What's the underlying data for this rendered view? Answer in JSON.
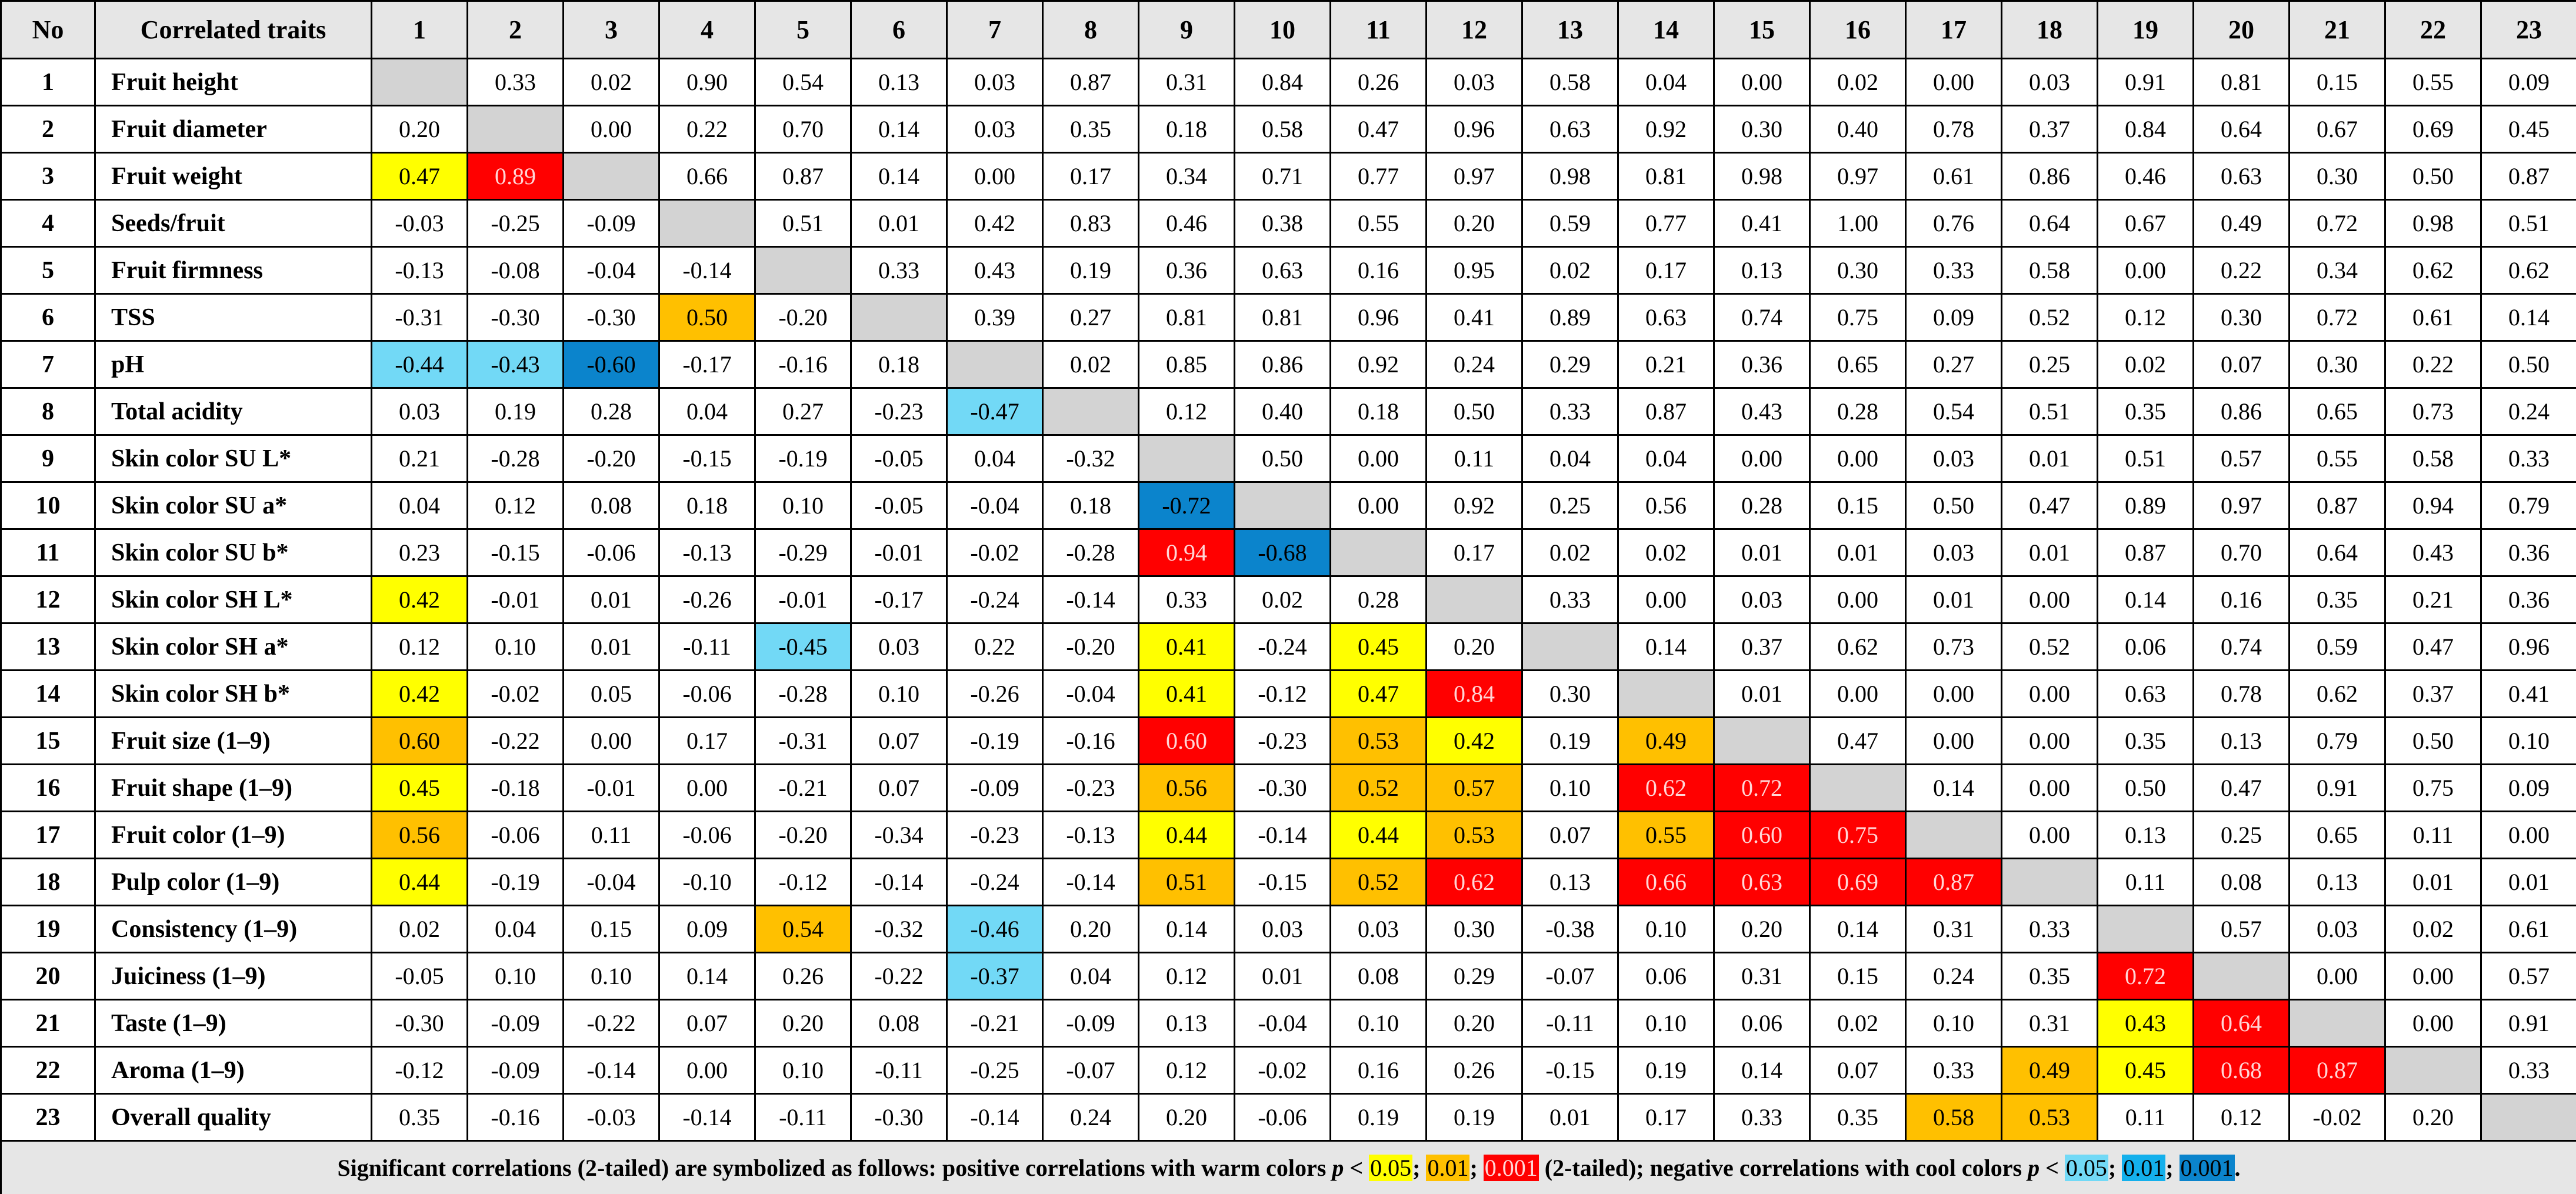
{
  "table": {
    "header": [
      "No",
      "Correlated traits",
      "1",
      "2",
      "3",
      "4",
      "5",
      "6",
      "7",
      "8",
      "9",
      "10",
      "11",
      "12",
      "13",
      "14",
      "15",
      "16",
      "17",
      "18",
      "19",
      "20",
      "21",
      "22",
      "23"
    ],
    "rows": [
      {
        "no": "1",
        "label": "Fruit height",
        "cells": [
          null,
          "0.33",
          "0.02",
          "0.90",
          "0.54",
          "0.13",
          "0.03",
          "0.87",
          "0.31",
          "0.84",
          "0.26",
          "0.03",
          "0.58",
          "0.04",
          "0.00",
          "0.02",
          "0.00",
          "0.03",
          "0.91",
          "0.81",
          "0.15",
          "0.55",
          "0.09"
        ]
      },
      {
        "no": "2",
        "label": "Fruit diameter",
        "cells": [
          "0.20",
          null,
          "0.00",
          "0.22",
          "0.70",
          "0.14",
          "0.03",
          "0.35",
          "0.18",
          "0.58",
          "0.47",
          "0.96",
          "0.63",
          "0.92",
          "0.30",
          "0.40",
          "0.78",
          "0.37",
          "0.84",
          "0.64",
          "0.67",
          "0.69",
          "0.45"
        ]
      },
      {
        "no": "3",
        "label": "Fruit weight",
        "cells": [
          {
            "text": "0.47",
            "color": "#ffff00"
          },
          {
            "text": "0.89",
            "color": "#ff0000"
          },
          null,
          "0.66",
          "0.87",
          "0.14",
          "0.00",
          "0.17",
          "0.34",
          "0.71",
          "0.77",
          "0.97",
          "0.98",
          "0.81",
          "0.98",
          "0.97",
          "0.61",
          "0.86",
          "0.46",
          "0.63",
          "0.30",
          "0.50",
          "0.87"
        ]
      },
      {
        "no": "4",
        "label": "Seeds/fruit",
        "cells": [
          "-0.03",
          "-0.25",
          "-0.09",
          null,
          "0.51",
          "0.01",
          "0.42",
          "0.83",
          "0.46",
          "0.38",
          "0.55",
          "0.20",
          "0.59",
          "0.77",
          "0.41",
          "1.00",
          "0.76",
          "0.64",
          "0.67",
          "0.49",
          "0.72",
          "0.98",
          "0.51"
        ]
      },
      {
        "no": "5",
        "label": "Fruit firmness",
        "cells": [
          "-0.13",
          "-0.08",
          "-0.04",
          "-0.14",
          null,
          "0.33",
          "0.43",
          "0.19",
          "0.36",
          "0.63",
          "0.16",
          "0.95",
          "0.02",
          "0.17",
          "0.13",
          "0.30",
          "0.33",
          "0.58",
          "0.00",
          "0.22",
          "0.34",
          "0.62",
          "0.62"
        ]
      },
      {
        "no": "6",
        "label": "TSS",
        "cells": [
          "-0.31",
          "-0.30",
          "-0.30",
          {
            "text": "0.50",
            "color": "#ffc000"
          },
          "-0.20",
          null,
          "0.39",
          "0.27",
          "0.81",
          "0.81",
          "0.96",
          "0.41",
          "0.89",
          "0.63",
          "0.74",
          "0.75",
          "0.09",
          "0.52",
          "0.12",
          "0.30",
          "0.72",
          "0.61",
          "0.14"
        ]
      },
      {
        "no": "7",
        "label": "pH",
        "cells": [
          {
            "text": "-0.44",
            "color": "#72d9f6"
          },
          {
            "text": "-0.43",
            "color": "#72d9f6"
          },
          {
            "text": "-0.60",
            "color": "#0b84cc"
          },
          "-0.17",
          "-0.16",
          "0.18",
          null,
          "0.02",
          "0.85",
          "0.86",
          "0.92",
          "0.24",
          "0.29",
          "0.21",
          "0.36",
          "0.65",
          "0.27",
          "0.25",
          "0.02",
          "0.07",
          "0.30",
          "0.22",
          "0.50"
        ]
      },
      {
        "no": "8",
        "label": "Total acidity",
        "cells": [
          "0.03",
          "0.19",
          "0.28",
          "0.04",
          "0.27",
          "-0.23",
          {
            "text": "-0.47",
            "color": "#72d9f6"
          },
          null,
          "0.12",
          "0.40",
          "0.18",
          "0.50",
          "0.33",
          "0.87",
          "0.43",
          "0.28",
          "0.54",
          "0.51",
          "0.35",
          "0.86",
          "0.65",
          "0.73",
          "0.24"
        ]
      },
      {
        "no": "9",
        "label": "Skin color SU L*",
        "cells": [
          "0.21",
          "-0.28",
          "-0.20",
          "-0.15",
          "-0.19",
          "-0.05",
          "0.04",
          "-0.32",
          null,
          "0.50",
          "0.00",
          "0.11",
          "0.04",
          "0.04",
          "0.00",
          "0.00",
          "0.03",
          "0.01",
          "0.51",
          "0.57",
          "0.55",
          "0.58",
          "0.33"
        ]
      },
      {
        "no": "10",
        "label": "Skin color SU a*",
        "cells": [
          "0.04",
          "0.12",
          "0.08",
          "0.18",
          "0.10",
          "-0.05",
          "-0.04",
          "0.18",
          {
            "text": "-0.72",
            "color": "#0b84cc"
          },
          null,
          "0.00",
          "0.92",
          "0.25",
          "0.56",
          "0.28",
          "0.15",
          "0.50",
          "0.47",
          "0.89",
          "0.97",
          "0.87",
          "0.94",
          "0.79"
        ]
      },
      {
        "no": "11",
        "label": "Skin color SU b*",
        "cells": [
          "0.23",
          "-0.15",
          "-0.06",
          "-0.13",
          "-0.29",
          "-0.01",
          "-0.02",
          "-0.28",
          {
            "text": "0.94",
            "color": "#ff0000"
          },
          {
            "text": "-0.68",
            "color": "#0b84cc"
          },
          null,
          "0.17",
          "0.02",
          "0.02",
          "0.01",
          "0.01",
          "0.03",
          "0.01",
          "0.87",
          "0.70",
          "0.64",
          "0.43",
          "0.36"
        ]
      },
      {
        "no": "12",
        "label": "Skin color SH L*",
        "cells": [
          {
            "text": "0.42",
            "color": "#ffff00"
          },
          "-0.01",
          "0.01",
          "-0.26",
          "-0.01",
          "-0.17",
          "-0.24",
          "-0.14",
          "0.33",
          "0.02",
          "0.28",
          null,
          "0.33",
          "0.00",
          "0.03",
          "0.00",
          "0.01",
          "0.00",
          "0.14",
          "0.16",
          "0.35",
          "0.21",
          "0.36"
        ]
      },
      {
        "no": "13",
        "label": "Skin color SH a*",
        "cells": [
          "0.12",
          "0.10",
          "0.01",
          "-0.11",
          {
            "text": "-0.45",
            "color": "#72d9f6"
          },
          "0.03",
          "0.22",
          "-0.20",
          {
            "text": "0.41",
            "color": "#ffff00"
          },
          "-0.24",
          {
            "text": "0.45",
            "color": "#ffff00"
          },
          "0.20",
          null,
          "0.14",
          "0.37",
          "0.62",
          "0.73",
          "0.52",
          "0.06",
          "0.74",
          "0.59",
          "0.47",
          "0.96"
        ]
      },
      {
        "no": "14",
        "label": "Skin color SH b*",
        "cells": [
          {
            "text": "0.42",
            "color": "#ffff00"
          },
          "-0.02",
          "0.05",
          "-0.06",
          "-0.28",
          "0.10",
          "-0.26",
          "-0.04",
          {
            "text": "0.41",
            "color": "#ffff00"
          },
          "-0.12",
          {
            "text": "0.47",
            "color": "#ffff00"
          },
          {
            "text": "0.84",
            "color": "#ff0000"
          },
          "0.30",
          null,
          "0.01",
          "0.00",
          "0.00",
          "0.00",
          "0.63",
          "0.78",
          "0.62",
          "0.37",
          "0.41"
        ]
      },
      {
        "no": "15",
        "label": "Fruit size (1–9)",
        "cells": [
          {
            "text": "0.60",
            "color": "#ffc000"
          },
          "-0.22",
          "0.00",
          "0.17",
          "-0.31",
          "0.07",
          "-0.19",
          "-0.16",
          {
            "text": "0.60",
            "color": "#ff0000"
          },
          "-0.23",
          {
            "text": "0.53",
            "color": "#ffc000"
          },
          {
            "text": "0.42",
            "color": "#ffff00"
          },
          "0.19",
          {
            "text": "0.49",
            "color": "#ffc000"
          },
          null,
          "0.47",
          "0.00",
          "0.00",
          "0.35",
          "0.13",
          "0.79",
          "0.50",
          "0.10"
        ]
      },
      {
        "no": "16",
        "label": "Fruit shape (1–9)",
        "cells": [
          {
            "text": "0.45",
            "color": "#ffff00"
          },
          "-0.18",
          "-0.01",
          "0.00",
          "-0.21",
          "0.07",
          "-0.09",
          "-0.23",
          {
            "text": "0.56",
            "color": "#ffc000"
          },
          "-0.30",
          {
            "text": "0.52",
            "color": "#ffc000"
          },
          {
            "text": "0.57",
            "color": "#ffc000"
          },
          "0.10",
          {
            "text": "0.62",
            "color": "#ff0000"
          },
          {
            "text": "0.72",
            "color": "#ff0000"
          },
          null,
          "0.14",
          "0.00",
          "0.50",
          "0.47",
          "0.91",
          "0.75",
          "0.09"
        ]
      },
      {
        "no": "17",
        "label": "Fruit color (1–9)",
        "cells": [
          {
            "text": "0.56",
            "color": "#ffc000"
          },
          "-0.06",
          "0.11",
          "-0.06",
          "-0.20",
          "-0.34",
          "-0.23",
          "-0.13",
          {
            "text": "0.44",
            "color": "#ffff00"
          },
          "-0.14",
          {
            "text": "0.44",
            "color": "#ffff00"
          },
          {
            "text": "0.53",
            "color": "#ffc000"
          },
          "0.07",
          {
            "text": "0.55",
            "color": "#ffc000"
          },
          {
            "text": "0.60",
            "color": "#ff0000"
          },
          {
            "text": "0.75",
            "color": "#ff0000"
          },
          null,
          "0.00",
          "0.13",
          "0.25",
          "0.65",
          "0.11",
          "0.00"
        ]
      },
      {
        "no": "18",
        "label": "Pulp color (1–9)",
        "cells": [
          {
            "text": "0.44",
            "color": "#ffff00"
          },
          "-0.19",
          "-0.04",
          "-0.10",
          "-0.12",
          "-0.14",
          "-0.24",
          "-0.14",
          {
            "text": "0.51",
            "color": "#ffc000"
          },
          "-0.15",
          {
            "text": "0.52",
            "color": "#ffc000"
          },
          {
            "text": "0.62",
            "color": "#ff0000"
          },
          "0.13",
          {
            "text": "0.66",
            "color": "#ff0000"
          },
          {
            "text": "0.63",
            "color": "#ff0000"
          },
          {
            "text": "0.69",
            "color": "#ff0000"
          },
          {
            "text": "0.87",
            "color": "#ff0000"
          },
          null,
          "0.11",
          "0.08",
          "0.13",
          "0.01",
          "0.01"
        ]
      },
      {
        "no": "19",
        "label": "Consistency (1–9)",
        "cells": [
          "0.02",
          "0.04",
          "0.15",
          "0.09",
          {
            "text": "0.54",
            "color": "#ffc000"
          },
          "-0.32",
          {
            "text": "-0.46",
            "color": "#72d9f6"
          },
          "0.20",
          "0.14",
          "0.03",
          "0.03",
          "0.30",
          "-0.38",
          "0.10",
          "0.20",
          "0.14",
          "0.31",
          "0.33",
          null,
          "0.57",
          "0.03",
          "0.02",
          "0.61"
        ]
      },
      {
        "no": "20",
        "label": "Juiciness (1–9)",
        "cells": [
          "-0.05",
          "0.10",
          "0.10",
          "0.14",
          "0.26",
          "-0.22",
          {
            "text": "-0.37",
            "color": "#72d9f6"
          },
          "0.04",
          "0.12",
          "0.01",
          "0.08",
          "0.29",
          "-0.07",
          "0.06",
          "0.31",
          "0.15",
          "0.24",
          "0.35",
          {
            "text": "0.72",
            "color": "#ff0000"
          },
          null,
          "0.00",
          "0.00",
          "0.57"
        ]
      },
      {
        "no": "21",
        "label": "Taste (1–9)",
        "cells": [
          "-0.30",
          "-0.09",
          "-0.22",
          "0.07",
          "0.20",
          "0.08",
          "-0.21",
          "-0.09",
          "0.13",
          "-0.04",
          "0.10",
          "0.20",
          "-0.11",
          "0.10",
          "0.06",
          "0.02",
          "0.10",
          "0.31",
          {
            "text": "0.43",
            "color": "#ffff00"
          },
          {
            "text": "0.64",
            "color": "#ff0000"
          },
          null,
          "0.00",
          "0.91"
        ]
      },
      {
        "no": "22",
        "label": "Aroma (1–9)",
        "cells": [
          "-0.12",
          "-0.09",
          "-0.14",
          "0.00",
          "0.10",
          "-0.11",
          "-0.25",
          "-0.07",
          "0.12",
          "-0.02",
          "0.16",
          "0.26",
          "-0.15",
          "0.19",
          "0.14",
          "0.07",
          "0.33",
          {
            "text": "0.49",
            "color": "#ffc000"
          },
          {
            "text": "0.45",
            "color": "#ffff00"
          },
          {
            "text": "0.68",
            "color": "#ff0000"
          },
          {
            "text": "0.87",
            "color": "#ff0000"
          },
          null,
          "0.33"
        ]
      },
      {
        "no": "23",
        "label": "Overall quality",
        "cells": [
          "0.35",
          "-0.16",
          "-0.03",
          "-0.14",
          "-0.11",
          "-0.30",
          "-0.14",
          "0.24",
          "0.20",
          "-0.06",
          "0.19",
          "0.19",
          "0.01",
          "0.17",
          "0.33",
          "0.35",
          {
            "text": "0.58",
            "color": "#ffc000"
          },
          {
            "text": "0.53",
            "color": "#ffc000"
          },
          "0.11",
          "0.12",
          "-0.02",
          "0.20",
          null
        ]
      }
    ],
    "footnote": [
      {
        "text": "Significant correlations (2-tailed) are symbolized as follows: positive correlations with warm colors "
      },
      {
        "text": "p",
        "style": "italic"
      },
      {
        "text": " < "
      },
      {
        "text": "0.05",
        "color": "#ffff00"
      },
      {
        "text": "; "
      },
      {
        "text": "0.01",
        "color": "#ffc000"
      },
      {
        "text": "; "
      },
      {
        "text": "0.001",
        "color": "#ff0000"
      },
      {
        "text": " (2-tailed); negative correlations with cool colors "
      },
      {
        "text": "p",
        "style": "italic"
      },
      {
        "text": " < "
      },
      {
        "text": "0.05",
        "color": "#72d9f6"
      },
      {
        "text": "; "
      },
      {
        "text": "0.01",
        "color": "#14b0ec"
      },
      {
        "text": "; "
      },
      {
        "text": "0.001",
        "color": "#0b84cc"
      },
      {
        "text": "."
      }
    ]
  }
}
